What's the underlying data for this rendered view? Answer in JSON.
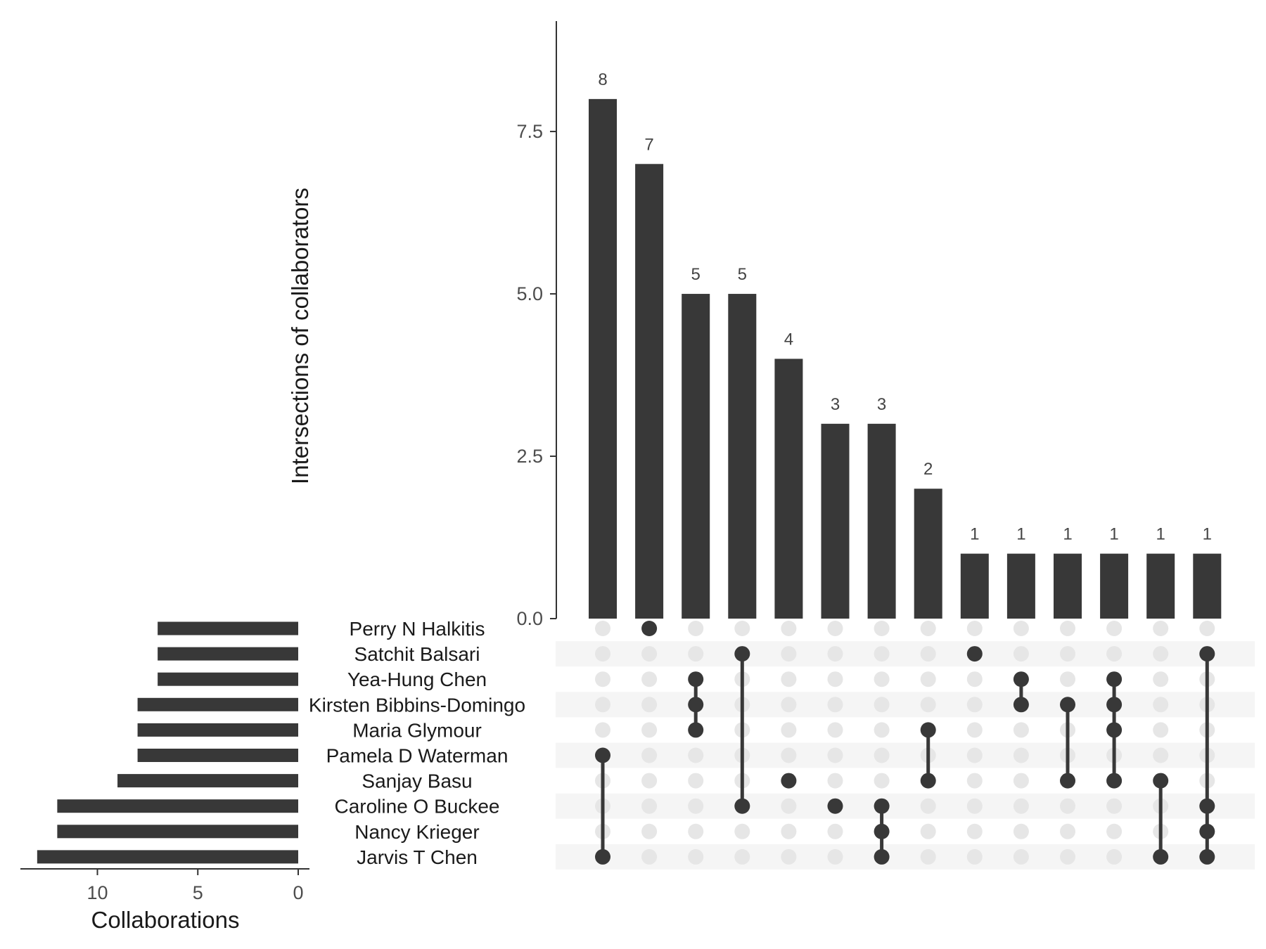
{
  "colors": {
    "bar": "#383838",
    "dot_active": "#383838",
    "dot_inactive": "#e6e6e6",
    "stripe": "#f5f5f5",
    "axis": "#333333"
  },
  "chart_data": {
    "type": "upset",
    "intersection_axis": {
      "label": "Intersections of collaborators",
      "ylim": [
        0,
        9.2
      ],
      "ticks": [
        "0.0",
        "2.5",
        "5.0",
        "7.5"
      ],
      "tick_values": [
        0,
        2.5,
        5.0,
        7.5
      ]
    },
    "set_size_axis": {
      "label": "Collaborations",
      "xlim": [
        0,
        13.8
      ],
      "ticks": [
        "10",
        "5",
        "0"
      ],
      "tick_values": [
        10,
        5,
        0
      ],
      "reversed": true
    },
    "sets": [
      {
        "name": "Perry N Halkitis",
        "size": 7
      },
      {
        "name": "Satchit Balsari",
        "size": 7
      },
      {
        "name": "Yea-Hung Chen",
        "size": 7
      },
      {
        "name": "Kirsten Bibbins-Domingo",
        "size": 8
      },
      {
        "name": "Maria Glymour",
        "size": 8
      },
      {
        "name": "Pamela D Waterman",
        "size": 8
      },
      {
        "name": "Sanjay Basu",
        "size": 9
      },
      {
        "name": "Caroline O Buckee",
        "size": 12
      },
      {
        "name": "Nancy Krieger",
        "size": 12
      },
      {
        "name": "Jarvis T Chen",
        "size": 13
      }
    ],
    "intersections": [
      {
        "value": 8,
        "label": "8",
        "members": [
          5,
          9
        ]
      },
      {
        "value": 7,
        "label": "7",
        "members": [
          0
        ]
      },
      {
        "value": 5,
        "label": "5",
        "members": [
          2,
          3,
          4
        ]
      },
      {
        "value": 5,
        "label": "5",
        "members": [
          1,
          7
        ]
      },
      {
        "value": 4,
        "label": "4",
        "members": [
          6
        ]
      },
      {
        "value": 3,
        "label": "3",
        "members": [
          7
        ]
      },
      {
        "value": 3,
        "label": "3",
        "members": [
          7,
          8,
          9
        ]
      },
      {
        "value": 2,
        "label": "2",
        "members": [
          4,
          6
        ]
      },
      {
        "value": 1,
        "label": "1",
        "members": [
          1
        ]
      },
      {
        "value": 1,
        "label": "1",
        "members": [
          2,
          3
        ]
      },
      {
        "value": 1,
        "label": "1",
        "members": [
          3,
          6
        ]
      },
      {
        "value": 1,
        "label": "1",
        "members": [
          2,
          3,
          4,
          6
        ]
      },
      {
        "value": 1,
        "label": "1",
        "members": [
          6,
          9
        ]
      },
      {
        "value": 1,
        "label": "1",
        "members": [
          1,
          7,
          8,
          9
        ]
      }
    ]
  }
}
